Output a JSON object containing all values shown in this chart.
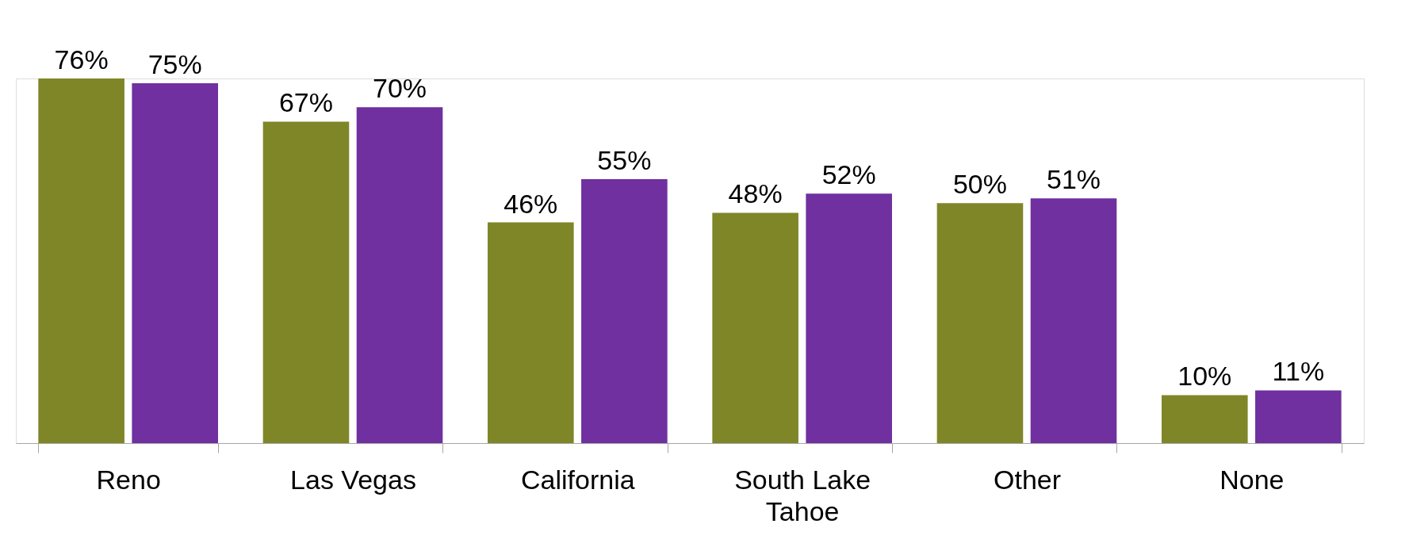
{
  "chart_data": {
    "type": "bar",
    "categories": [
      "Reno",
      "Las Vegas",
      "California",
      "South Lake Tahoe",
      "Other",
      "None"
    ],
    "series": [
      {
        "color": "#7f8628",
        "values": [
          76,
          67,
          46,
          48,
          50,
          10
        ],
        "value_labels": [
          "76%",
          "67%",
          "46%",
          "48%",
          "50%",
          "10%"
        ]
      },
      {
        "color": "#7030a0",
        "values": [
          75,
          70,
          55,
          52,
          51,
          11
        ],
        "value_labels": [
          "75%",
          "70%",
          "55%",
          "52%",
          "51%",
          "11%"
        ]
      }
    ],
    "tick_labels": "x",
    "legend": false
  }
}
